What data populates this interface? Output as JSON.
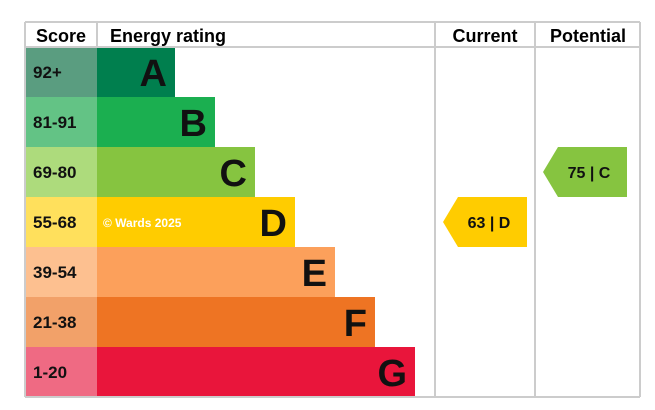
{
  "chart_data": {
    "type": "bar",
    "headers": {
      "score": "Score",
      "rating": "Energy rating",
      "current": "Current",
      "potential": "Potential"
    },
    "bands": [
      {
        "letter": "A",
        "range": "92+",
        "color": "#007f4e",
        "score_color": "#5a9d80"
      },
      {
        "letter": "B",
        "range": "81-91",
        "color": "#1baf50",
        "score_color": "#63c385"
      },
      {
        "letter": "C",
        "range": "69-80",
        "color": "#86c440",
        "score_color": "#addb7c"
      },
      {
        "letter": "D",
        "range": "55-68",
        "color": "#ffcc00",
        "score_color": "#ffe05c"
      },
      {
        "letter": "E",
        "range": "39-54",
        "color": "#fca05b",
        "score_color": "#fdc090"
      },
      {
        "letter": "F",
        "range": "21-38",
        "color": "#ee7423",
        "score_color": "#f2a169"
      },
      {
        "letter": "G",
        "range": "1-20",
        "color": "#e9153b",
        "score_color": "#ef6a83"
      }
    ],
    "current": {
      "value": 63,
      "band": "D",
      "label": "63 | D",
      "color": "#ffcc00"
    },
    "potential": {
      "value": 75,
      "band": "C",
      "label": "75 | C",
      "color": "#86c440"
    },
    "watermark": "© Wards 2025",
    "grid_color": "#cccccc"
  }
}
